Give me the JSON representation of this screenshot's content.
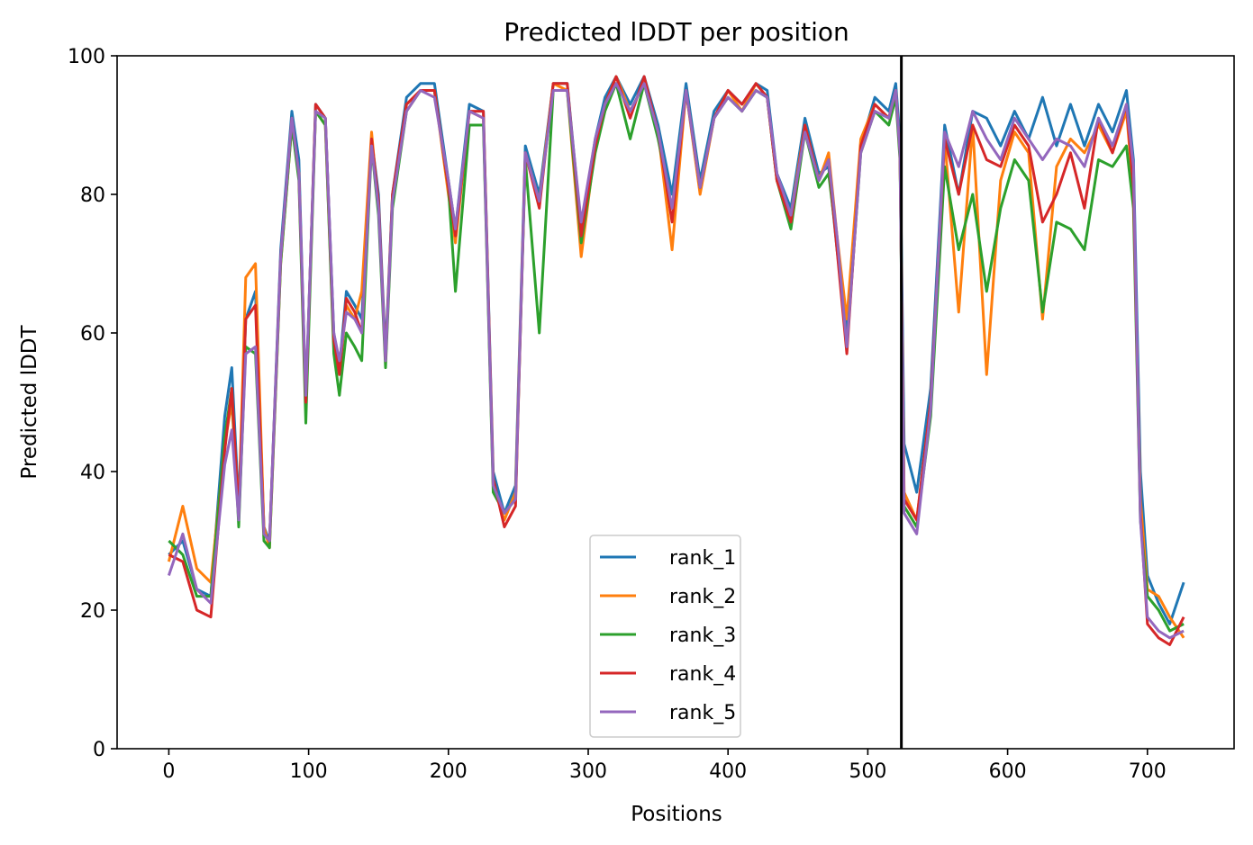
{
  "chart_data": {
    "type": "line",
    "title": "Predicted lDDT per position",
    "xlabel": "Positions",
    "ylabel": "Predicted lDDT",
    "xlim": [
      -37,
      762
    ],
    "ylim": [
      0,
      100
    ],
    "xticks": [
      0,
      100,
      200,
      300,
      400,
      500,
      600,
      700
    ],
    "yticks": [
      0,
      20,
      40,
      60,
      80,
      100
    ],
    "grid": false,
    "legend_position": "bottom-center",
    "vline_x": 524,
    "vline_color": "#000000",
    "x": [
      0,
      10,
      20,
      30,
      40,
      45,
      50,
      55,
      62,
      68,
      72,
      80,
      88,
      93,
      98,
      105,
      112,
      118,
      122,
      127,
      133,
      138,
      145,
      150,
      155,
      160,
      170,
      180,
      190,
      200,
      205,
      215,
      225,
      232,
      240,
      248,
      255,
      265,
      275,
      285,
      295,
      305,
      312,
      320,
      330,
      340,
      350,
      360,
      370,
      380,
      390,
      400,
      410,
      420,
      428,
      435,
      445,
      455,
      465,
      472,
      478,
      485,
      495,
      505,
      515,
      520,
      523,
      526,
      535,
      545,
      555,
      565,
      575,
      585,
      595,
      605,
      615,
      625,
      635,
      645,
      655,
      665,
      675,
      685,
      690,
      695,
      700,
      708,
      716,
      726
    ],
    "series": [
      {
        "name": "rank_1",
        "color": "#1f77b4",
        "values": [
          28,
          30,
          23,
          22,
          48,
          55,
          35,
          62,
          66,
          32,
          30,
          72,
          92,
          85,
          50,
          93,
          91,
          60,
          55,
          66,
          64,
          62,
          88,
          80,
          57,
          80,
          94,
          96,
          96,
          82,
          75,
          93,
          92,
          40,
          34,
          38,
          87,
          80,
          96,
          96,
          75,
          88,
          94,
          97,
          93,
          97,
          90,
          80,
          96,
          82,
          92,
          95,
          93,
          96,
          95,
          83,
          78,
          91,
          83,
          84,
          72,
          60,
          87,
          94,
          92,
          96,
          88,
          44,
          37,
          52,
          90,
          80,
          92,
          91,
          87,
          92,
          88,
          94,
          87,
          93,
          87,
          93,
          89,
          95,
          85,
          40,
          25,
          21,
          18,
          24
        ]
      },
      {
        "name": "rank_2",
        "color": "#ff7f0e",
        "values": [
          27,
          35,
          26,
          24,
          44,
          50,
          34,
          68,
          70,
          32,
          29,
          70,
          90,
          83,
          49,
          92,
          90,
          58,
          54,
          64,
          62,
          66,
          89,
          78,
          56,
          79,
          93,
          95,
          95,
          80,
          73,
          92,
          91,
          38,
          33,
          37,
          86,
          79,
          96,
          95,
          71,
          87,
          93,
          97,
          92,
          96,
          89,
          72,
          95,
          80,
          91,
          95,
          92,
          96,
          94,
          82,
          77,
          90,
          82,
          86,
          74,
          62,
          88,
          93,
          91,
          95,
          86,
          37,
          33,
          50,
          88,
          63,
          90,
          54,
          82,
          89,
          86,
          62,
          84,
          88,
          86,
          90,
          86,
          92,
          80,
          36,
          23,
          22,
          19,
          16
        ]
      },
      {
        "name": "rank_3",
        "color": "#2ca02c",
        "values": [
          30,
          28,
          22,
          22,
          45,
          52,
          32,
          58,
          57,
          30,
          29,
          70,
          90,
          82,
          47,
          92,
          90,
          57,
          51,
          60,
          58,
          56,
          87,
          77,
          55,
          78,
          92,
          95,
          95,
          81,
          66,
          90,
          90,
          37,
          34,
          36,
          85,
          60,
          95,
          95,
          73,
          86,
          92,
          96,
          88,
          96,
          88,
          78,
          95,
          81,
          91,
          94,
          92,
          95,
          94,
          82,
          75,
          89,
          81,
          83,
          73,
          58,
          86,
          92,
          90,
          94,
          85,
          35,
          32,
          48,
          84,
          72,
          80,
          66,
          78,
          85,
          82,
          63,
          76,
          75,
          72,
          85,
          84,
          87,
          78,
          33,
          22,
          20,
          17,
          18
        ]
      },
      {
        "name": "rank_4",
        "color": "#d62728",
        "values": [
          28,
          27,
          20,
          19,
          43,
          52,
          34,
          62,
          64,
          31,
          30,
          71,
          91,
          83,
          50,
          93,
          91,
          59,
          54,
          65,
          63,
          60,
          88,
          79,
          56,
          80,
          93,
          95,
          95,
          81,
          74,
          92,
          92,
          39,
          32,
          35,
          86,
          78,
          96,
          96,
          74,
          87,
          93,
          97,
          91,
          97,
          89,
          76,
          95,
          81,
          91,
          95,
          93,
          96,
          94,
          82,
          76,
          90,
          82,
          85,
          72,
          57,
          87,
          93,
          91,
          95,
          86,
          36,
          33,
          50,
          88,
          80,
          90,
          85,
          84,
          90,
          87,
          76,
          80,
          86,
          78,
          91,
          86,
          93,
          81,
          34,
          18,
          16,
          15,
          19
        ]
      },
      {
        "name": "rank_5",
        "color": "#9467bd",
        "values": [
          25,
          31,
          23,
          21,
          41,
          46,
          33,
          57,
          58,
          31,
          30,
          71,
          91,
          83,
          51,
          92,
          91,
          60,
          56,
          63,
          62,
          60,
          87,
          78,
          56,
          79,
          92,
          95,
          94,
          82,
          75,
          92,
          91,
          38,
          34,
          36,
          86,
          79,
          95,
          95,
          76,
          88,
          93,
          96,
          92,
          96,
          89,
          78,
          95,
          81,
          91,
          94,
          92,
          95,
          94,
          83,
          77,
          89,
          82,
          85,
          74,
          58,
          86,
          92,
          91,
          95,
          86,
          34,
          31,
          49,
          89,
          84,
          92,
          88,
          85,
          91,
          88,
          85,
          88,
          87,
          84,
          91,
          87,
          93,
          84,
          33,
          19,
          17,
          16,
          17
        ]
      }
    ]
  }
}
